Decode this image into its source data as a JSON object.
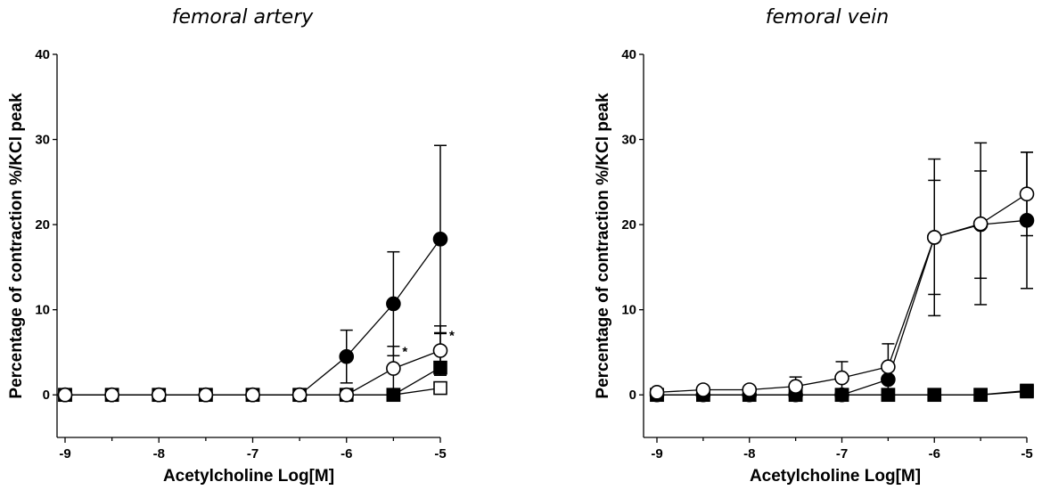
{
  "chart_data": [
    {
      "type": "line",
      "title": "femoral artery",
      "xlabel": "Acetylcholine Log[M]",
      "ylabel": "Percentage of contraction %/KCl peak",
      "xlim": [
        -9,
        -5
      ],
      "ylim": [
        -5,
        40
      ],
      "x_ticks": [
        "-9",
        "-8",
        "-7",
        "-6",
        "-5"
      ],
      "y_ticks": [
        "0",
        "10",
        "20",
        "30",
        "40"
      ],
      "series": [
        {
          "marker": "filled-circle",
          "x": [
            -9,
            -8.5,
            -8,
            -7.5,
            -7,
            -6.5,
            -6,
            -5.5,
            -5
          ],
          "y": [
            0,
            0,
            0,
            0,
            0,
            0,
            4.5,
            10.7,
            18.3
          ],
          "error": [
            0,
            0,
            0,
            0,
            0,
            0,
            3.1,
            6.1,
            11.0
          ]
        },
        {
          "marker": "open-circle",
          "x": [
            -9,
            -8.5,
            -8,
            -7.5,
            -7,
            -6.5,
            -6,
            -5.5,
            -5
          ],
          "y": [
            0,
            0,
            0,
            0,
            0,
            0,
            0,
            3.1,
            5.2
          ],
          "error": [
            0,
            0,
            0,
            0,
            0,
            0,
            0,
            2.6,
            2.9
          ]
        },
        {
          "marker": "filled-square",
          "x": [
            -9,
            -8.5,
            -8,
            -7.5,
            -7,
            -6.5,
            -6,
            -5.5,
            -5
          ],
          "y": [
            0,
            0,
            0,
            0,
            0,
            0,
            0,
            0,
            3.2
          ],
          "error": [
            0,
            0,
            0,
            0,
            0,
            0,
            0,
            0,
            4.0
          ]
        },
        {
          "marker": "open-square",
          "x": [
            -9,
            -8.5,
            -8,
            -7.5,
            -7,
            -6.5,
            -6,
            -5.5,
            -5
          ],
          "y": [
            0,
            0,
            0,
            0,
            0,
            0,
            0,
            0,
            0.8
          ],
          "error": [
            0,
            0,
            0,
            0,
            0,
            0,
            0,
            0,
            0
          ]
        }
      ],
      "annotations": [
        {
          "text": "*",
          "x": -5.5,
          "y": 5.4
        },
        {
          "text": "*",
          "x": -5,
          "y": 7.3
        }
      ]
    },
    {
      "type": "line",
      "title": "femoral vein",
      "xlabel": "Acetylcholine Log[M]",
      "ylabel": "Percentage of contraction %/KCl peak",
      "xlim": [
        -9,
        -5
      ],
      "ylim": [
        -5,
        40
      ],
      "x_ticks": [
        "-9",
        "-8",
        "-7",
        "-6",
        "-5"
      ],
      "y_ticks": [
        "0",
        "10",
        "20",
        "30",
        "40"
      ],
      "series": [
        {
          "marker": "filled-circle",
          "x": [
            -9,
            -8.5,
            -8,
            -7.5,
            -7,
            -6.5,
            -6,
            -5.5,
            -5
          ],
          "y": [
            0,
            0,
            0,
            0,
            0,
            1.8,
            18.5,
            20.0,
            20.5
          ],
          "error": [
            0,
            0,
            0,
            0,
            0,
            0,
            6.7,
            6.3,
            8.0
          ]
        },
        {
          "marker": "open-circle",
          "x": [
            -9,
            -8.5,
            -8,
            -7.5,
            -7,
            -6.5,
            -6,
            -5.5,
            -5
          ],
          "y": [
            0.3,
            0.6,
            0.6,
            1.0,
            2.0,
            3.3,
            18.5,
            20.1,
            23.6
          ],
          "error": [
            0,
            0,
            0,
            1.1,
            1.9,
            2.7,
            9.2,
            9.5,
            4.9
          ]
        },
        {
          "marker": "filled-square",
          "x": [
            -9,
            -8.5,
            -8,
            -7.5,
            -7,
            -6.5,
            -6,
            -5.5,
            -5
          ],
          "y": [
            0,
            0,
            0,
            0,
            0,
            0,
            0,
            0,
            0.4
          ],
          "error": [
            0,
            0,
            0,
            0,
            0,
            0,
            0,
            0,
            0
          ]
        },
        {
          "marker": "open-square",
          "x": [
            -9,
            -8.5,
            -8,
            -7.5,
            -7,
            -6.5,
            -6,
            -5.5,
            -5
          ],
          "y": [
            0,
            0,
            0,
            0,
            0,
            0,
            0,
            0,
            0.5
          ],
          "error": [
            0,
            0,
            0,
            0,
            0,
            0,
            0,
            0,
            0
          ]
        }
      ],
      "annotations": []
    }
  ]
}
